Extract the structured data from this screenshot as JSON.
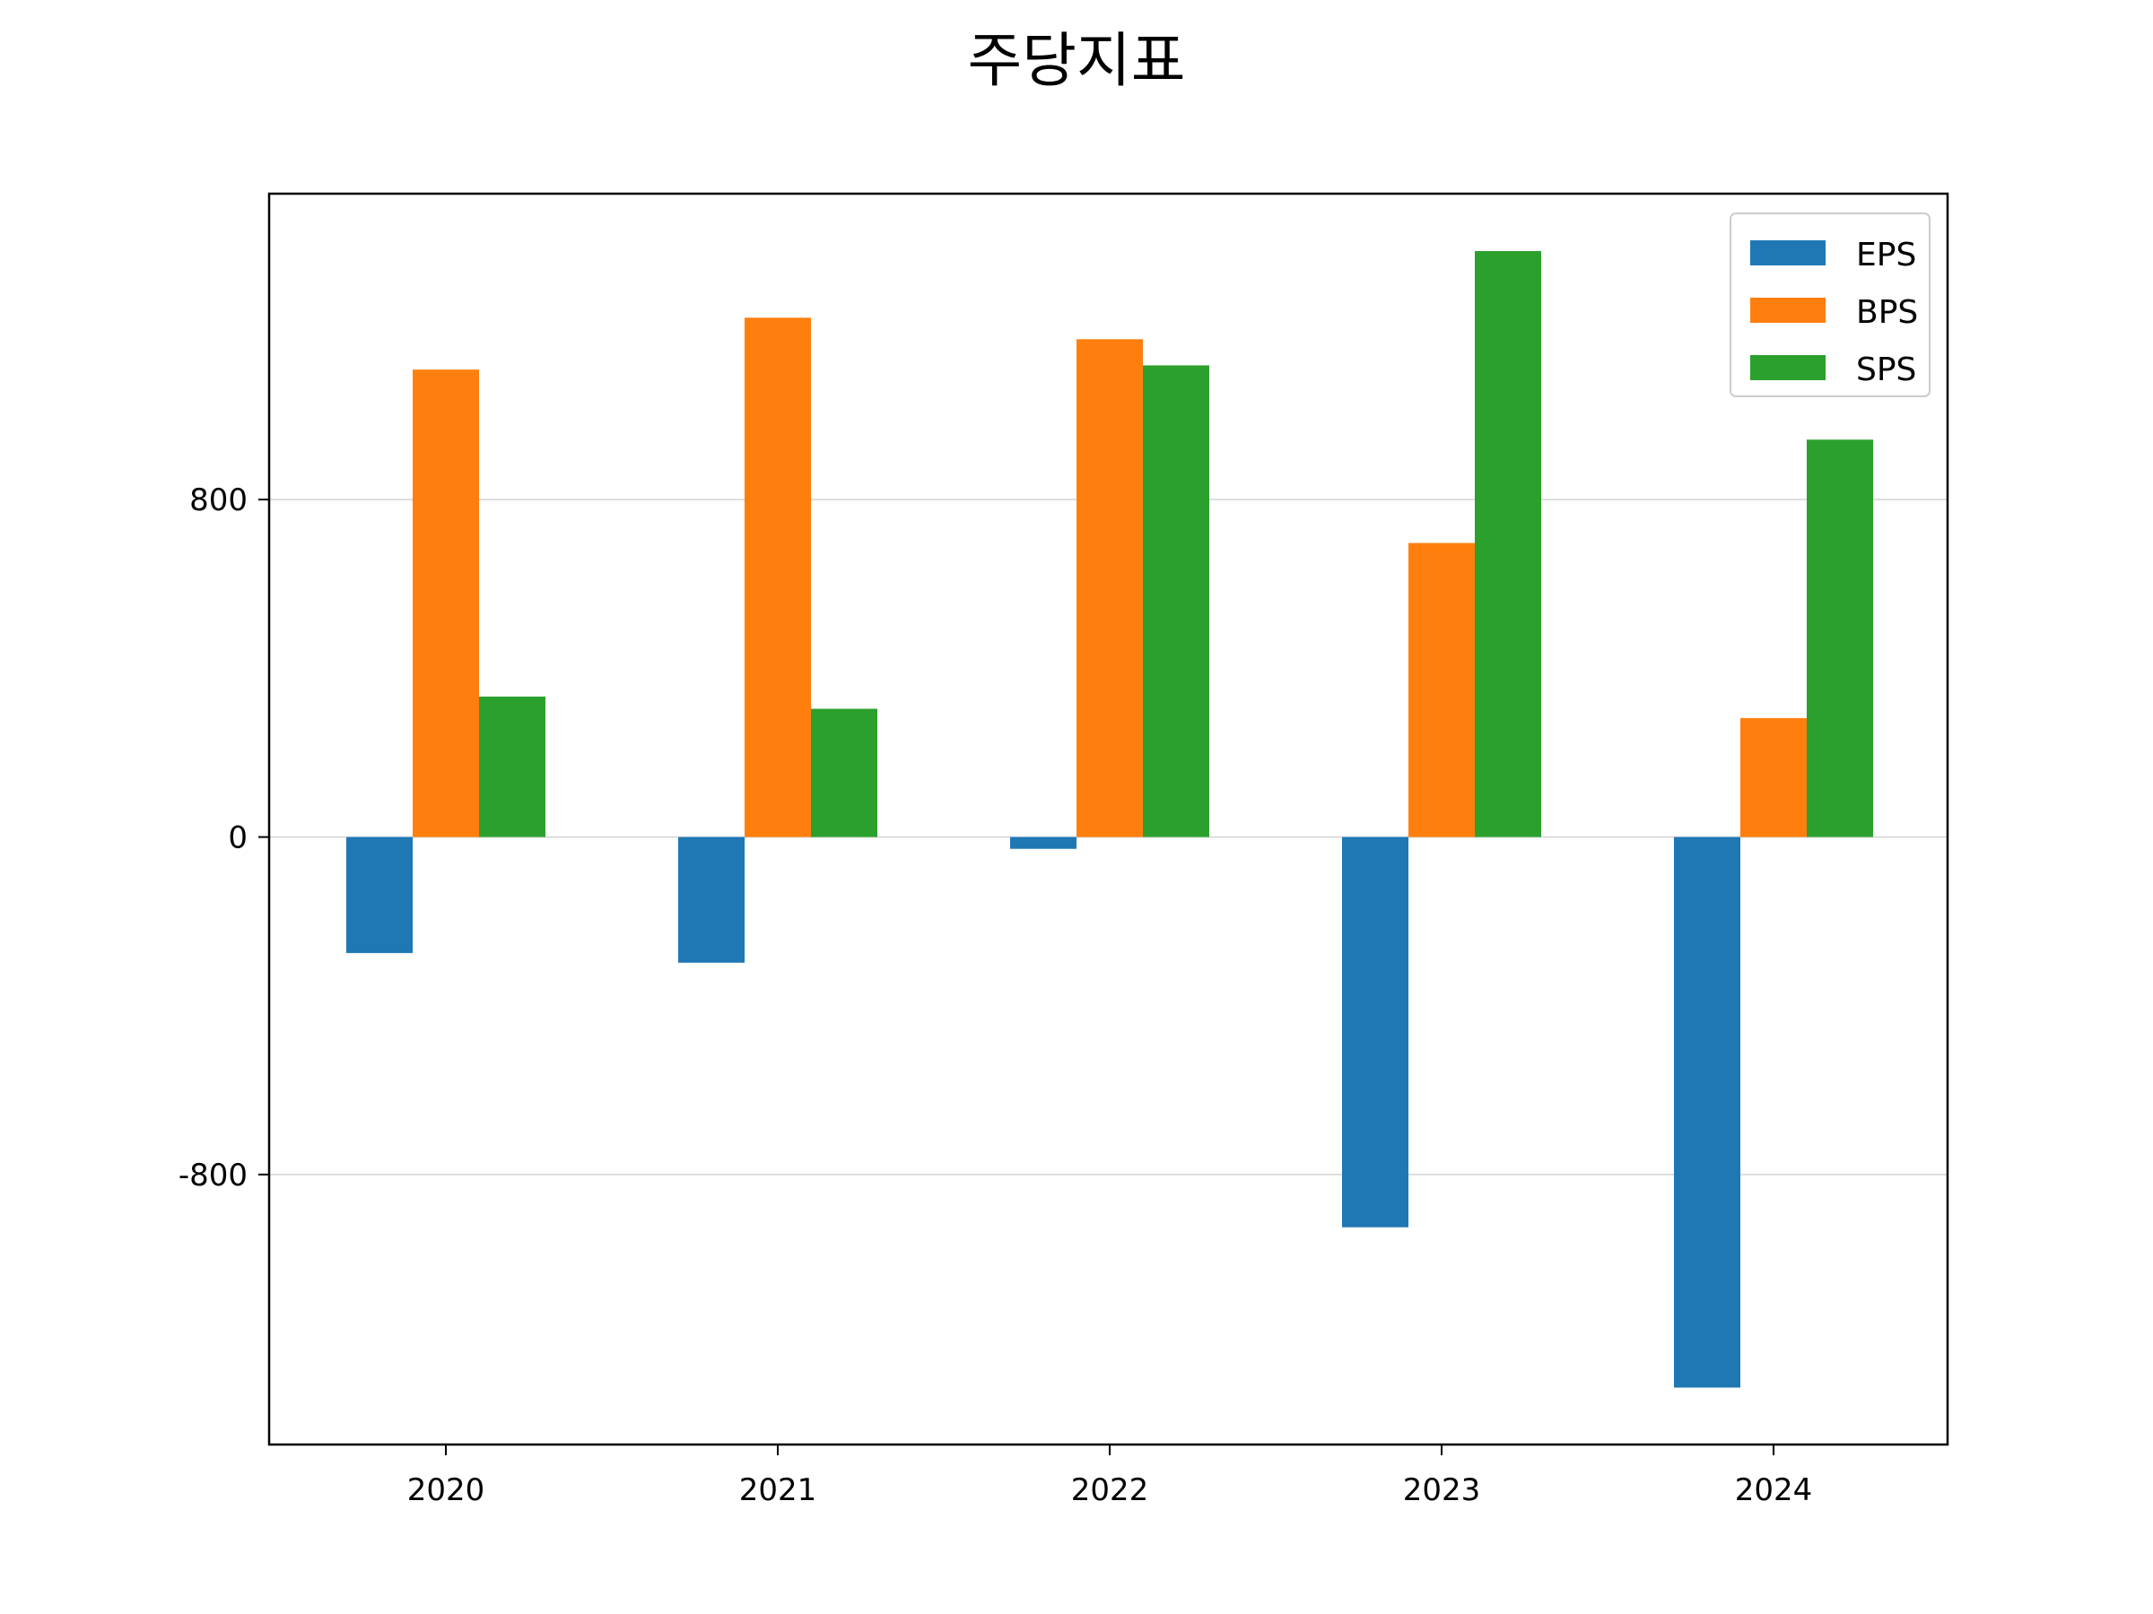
{
  "chart_data": {
    "type": "bar",
    "title": "주당지표",
    "xlabel": "",
    "ylabel": "",
    "categories": [
      "2020",
      "2021",
      "2022",
      "2023",
      "2024"
    ],
    "series": [
      {
        "name": "EPS",
        "color": "#1f77b4",
        "values": [
          -275,
          -298,
          -28,
          -925,
          -1305
        ]
      },
      {
        "name": "BPS",
        "color": "#ff7f0e",
        "values": [
          1108,
          1231,
          1180,
          697,
          282
        ]
      },
      {
        "name": "SPS",
        "color": "#2ca02c",
        "values": [
          333,
          304,
          1118,
          1389,
          942
        ]
      }
    ],
    "yticks": [
      -800,
      0,
      800
    ],
    "ytick_labels": [
      "-800",
      "0",
      "800"
    ],
    "ylim": [
      -1440,
      1525
    ],
    "grid": "y",
    "legend_position": "top-right"
  }
}
